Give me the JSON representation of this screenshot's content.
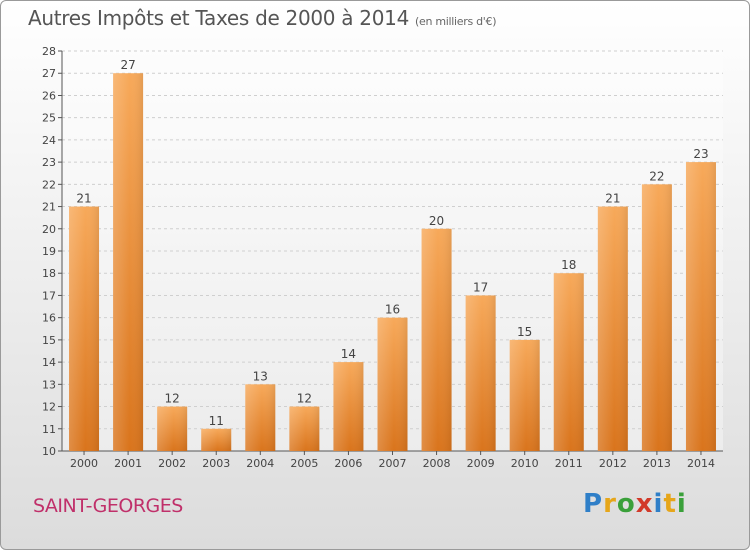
{
  "header": {
    "title": "Autres Impôts et Taxes de 2000 à 2014",
    "subtitle": "(en milliers d'€)"
  },
  "footer": {
    "commune": "SAINT-GEORGES",
    "brand": [
      "P",
      "r",
      "o",
      "x",
      "i",
      "t",
      "i"
    ],
    "brand_colors": [
      "#2f7fc8",
      "#e6a61a",
      "#3aa03a",
      "#d23a2a",
      "#2f7fc8",
      "#e6a61a",
      "#3aa03a"
    ]
  },
  "colors": {
    "bar_light": "#f7a95a",
    "bar_dark": "#d9741c",
    "grid": "#cfcfcf",
    "axis": "#555555"
  },
  "chart_data": {
    "type": "bar",
    "title": "Autres Impôts et Taxes de 2000 à 2014",
    "subtitle": "(en milliers d'€)",
    "categories": [
      "2000",
      "2001",
      "2002",
      "2003",
      "2004",
      "2005",
      "2006",
      "2007",
      "2008",
      "2009",
      "2010",
      "2011",
      "2012",
      "2013",
      "2014"
    ],
    "values": [
      21,
      27,
      12,
      11,
      13,
      12,
      14,
      16,
      20,
      17,
      15,
      18,
      21,
      22,
      23
    ],
    "ylim": [
      10,
      28
    ],
    "yticks": [
      10,
      11,
      12,
      13,
      14,
      15,
      16,
      17,
      18,
      19,
      20,
      21,
      22,
      23,
      24,
      25,
      26,
      27,
      28
    ],
    "grid": true,
    "data_labels": true
  }
}
